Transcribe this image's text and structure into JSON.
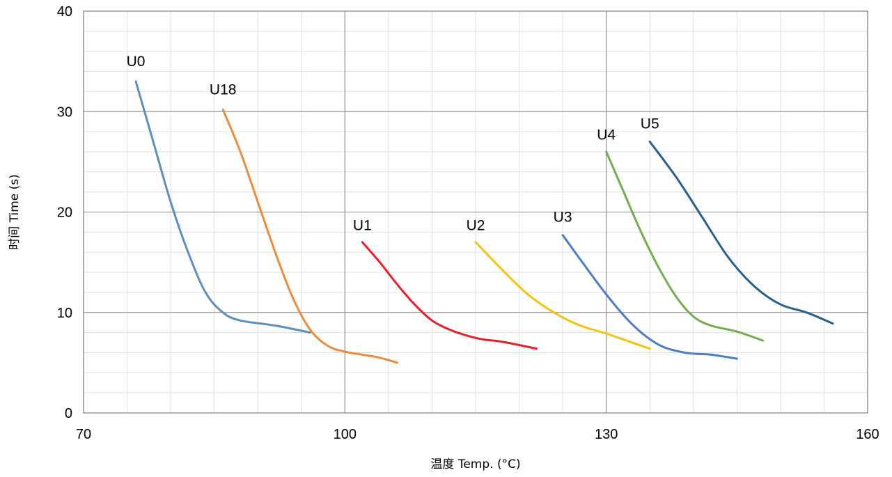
{
  "chart_data": {
    "type": "line",
    "xlabel": "温度 Temp. (°C)",
    "ylabel": "时间 Time (s)",
    "xlim": [
      70,
      160
    ],
    "ylim": [
      0,
      40
    ],
    "xticks": [
      70,
      100,
      130,
      160
    ],
    "yticks": [
      0,
      10,
      20,
      30,
      40
    ],
    "x_minor_step": 5,
    "y_minor_step": 2,
    "grid": {
      "major": true,
      "minor": true
    },
    "legend": "none",
    "series": [
      {
        "name": "U0",
        "color": "#5b8ec0",
        "points": [
          [
            76,
            33
          ],
          [
            78,
            27
          ],
          [
            80,
            21
          ],
          [
            82,
            16
          ],
          [
            84,
            12
          ],
          [
            86,
            10
          ],
          [
            88,
            9.2
          ],
          [
            92,
            8.7
          ],
          [
            96,
            8
          ]
        ]
      },
      {
        "name": "U18",
        "color": "#ed8a3c",
        "points": [
          [
            86,
            30.2
          ],
          [
            88,
            26
          ],
          [
            90,
            21
          ],
          [
            92,
            16
          ],
          [
            94,
            11.5
          ],
          [
            96,
            8.3
          ],
          [
            98,
            6.7
          ],
          [
            100,
            6.1
          ],
          [
            102,
            5.8
          ],
          [
            104,
            5.5
          ],
          [
            106,
            5
          ]
        ]
      },
      {
        "name": "U1",
        "color": "#ee1c24",
        "points": [
          [
            102,
            17
          ],
          [
            104,
            15
          ],
          [
            106,
            12.8
          ],
          [
            108,
            10.8
          ],
          [
            110,
            9.2
          ],
          [
            112,
            8.3
          ],
          [
            114,
            7.7
          ],
          [
            116,
            7.3
          ],
          [
            118,
            7.1
          ],
          [
            122,
            6.4
          ]
        ]
      },
      {
        "name": "U2",
        "color": "#f5c211",
        "points": [
          [
            115,
            17
          ],
          [
            118,
            14.3
          ],
          [
            121,
            11.8
          ],
          [
            124,
            10
          ],
          [
            127,
            8.7
          ],
          [
            130,
            7.9
          ],
          [
            133,
            7
          ],
          [
            135,
            6.4
          ]
        ]
      },
      {
        "name": "U3",
        "color": "#4a7cc9",
        "points": [
          [
            125,
            17.7
          ],
          [
            127,
            15.3
          ],
          [
            130,
            11.8
          ],
          [
            133,
            8.8
          ],
          [
            136,
            6.8
          ],
          [
            139,
            6.0
          ],
          [
            142,
            5.8
          ],
          [
            145,
            5.4
          ]
        ]
      },
      {
        "name": "U4",
        "color": "#72ad4c",
        "points": [
          [
            130,
            26
          ],
          [
            132,
            22
          ],
          [
            134,
            18
          ],
          [
            136,
            14.5
          ],
          [
            138,
            11.6
          ],
          [
            140,
            9.6
          ],
          [
            142,
            8.7
          ],
          [
            145,
            8.1
          ],
          [
            148,
            7.2
          ]
        ]
      },
      {
        "name": "U5",
        "color": "#255e91",
        "points": [
          [
            135,
            27
          ],
          [
            138,
            23.5
          ],
          [
            141,
            19.5
          ],
          [
            144,
            15.5
          ],
          [
            147,
            12.6
          ],
          [
            150,
            10.8
          ],
          [
            153,
            10
          ],
          [
            156,
            8.9
          ]
        ]
      }
    ],
    "annotations": [
      {
        "text": "U0",
        "x": 76.0,
        "y": 35.0
      },
      {
        "text": "U18",
        "x": 86.0,
        "y": 32.2
      },
      {
        "text": "U1",
        "x": 102.0,
        "y": 18.7
      },
      {
        "text": "U2",
        "x": 115.0,
        "y": 18.7
      },
      {
        "text": "U3",
        "x": 125.0,
        "y": 19.5
      },
      {
        "text": "U4",
        "x": 130.0,
        "y": 27.7
      },
      {
        "text": "U5",
        "x": 135.0,
        "y": 28.8
      }
    ]
  }
}
